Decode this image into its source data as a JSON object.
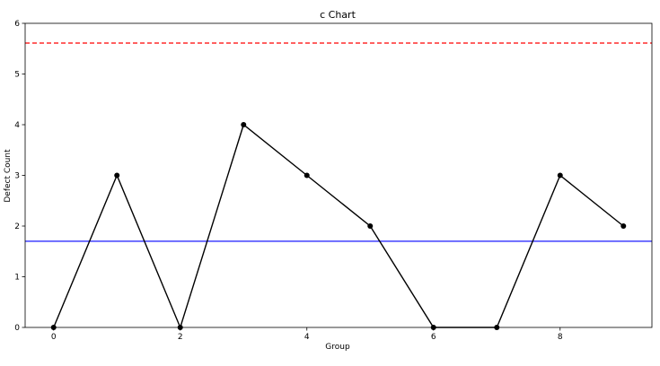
{
  "chart_data": {
    "type": "line",
    "title": "c Chart",
    "xlabel": "Group",
    "ylabel": "Defect Count",
    "xlim": [
      -0.45,
      9.45
    ],
    "ylim": [
      0,
      6
    ],
    "x_ticks": [
      0,
      2,
      4,
      6,
      8
    ],
    "y_ticks": [
      0,
      1,
      2,
      3,
      4,
      5,
      6
    ],
    "grid": false,
    "series": [
      {
        "x": [
          0,
          1,
          2,
          3,
          4,
          5,
          6,
          7,
          8,
          9
        ],
        "values": [
          0,
          3,
          0,
          4,
          3,
          2,
          0,
          0,
          3,
          2
        ],
        "color": "#000000",
        "marker": "circle"
      }
    ],
    "reference_lines": [
      {
        "y": 1.7,
        "color": "#0000ff",
        "style": "solid"
      },
      {
        "y": 5.61,
        "color": "#ff0000",
        "style": "dashed"
      }
    ]
  }
}
